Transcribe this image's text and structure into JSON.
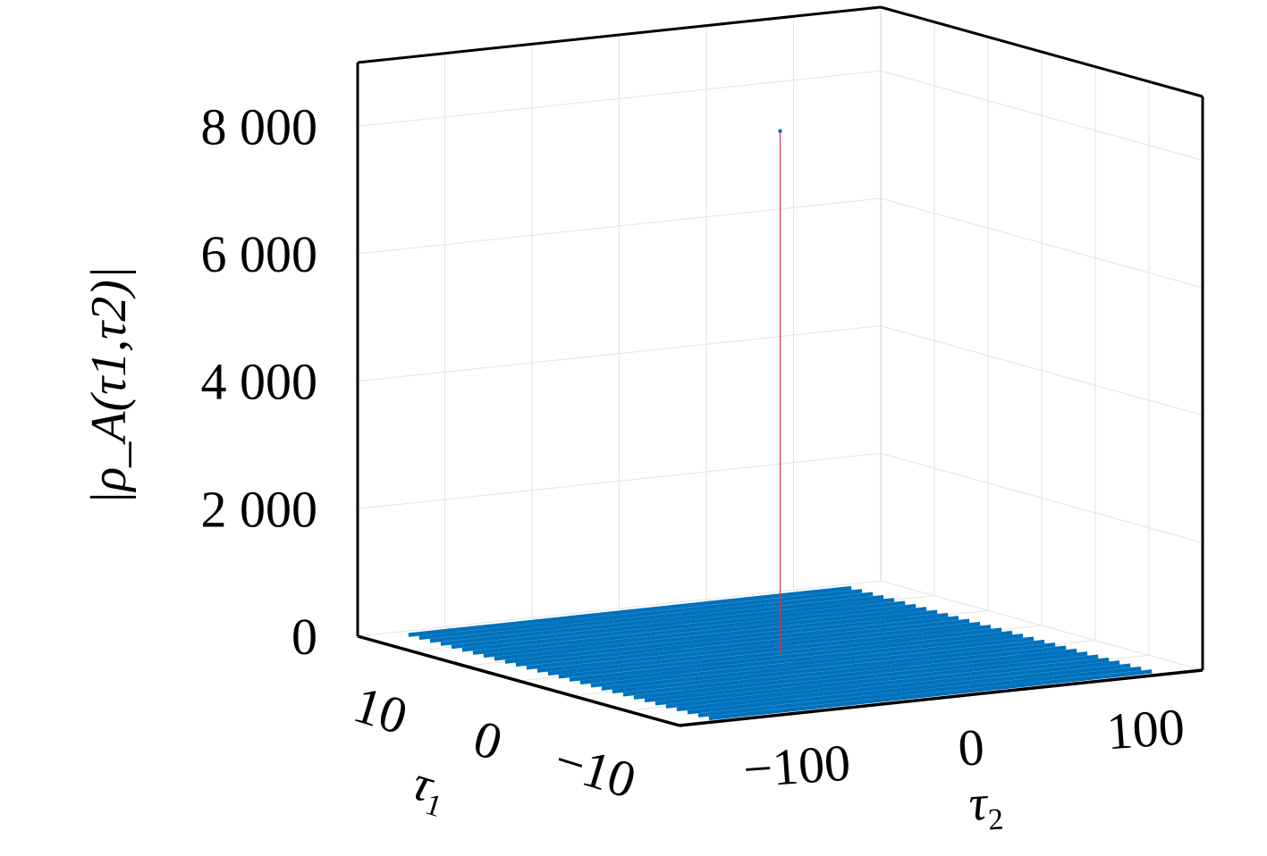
{
  "chart_data": {
    "type": "surface3d",
    "title": "",
    "xlabel": "τ1",
    "ylabel": "τ2",
    "zlabel": "|ρ_A(τ1,τ2)|",
    "zlabel_parts": {
      "open": "|ρ",
      "sub_a": "A",
      "mid1": "(τ",
      "sub1": "1",
      "comma": ",τ",
      "sub2": "2",
      "close": ")|"
    },
    "xlabel_parts": {
      "main": "τ",
      "sub": "1"
    },
    "ylabel_parts": {
      "main": "τ",
      "sub": "2"
    },
    "xlim": [
      -15,
      15
    ],
    "ylim": [
      -150,
      150
    ],
    "zlim": [
      0,
      9000
    ],
    "xticks": [
      10,
      0,
      -10
    ],
    "xtick_labels": [
      "10",
      "0",
      "−10"
    ],
    "yticks": [
      -100,
      0,
      100
    ],
    "ytick_labels": [
      "−100",
      "0",
      "100"
    ],
    "zticks": [
      0,
      2000,
      4000,
      6000,
      8000
    ],
    "ztick_labels": [
      "0",
      "2 000",
      "4 000",
      "6 000",
      "8 000"
    ],
    "grid": true,
    "surface": {
      "tau1_range": [
        -14,
        14
      ],
      "tau1_step": 1,
      "tau2_range": [
        -127,
        127
      ],
      "baseline_value": 0,
      "color": "#0072bd"
    },
    "peak": {
      "tau1": 0,
      "tau2": 0,
      "value": 8192,
      "stem_color": "#e0313f",
      "marker_color": "#0072bd"
    }
  }
}
